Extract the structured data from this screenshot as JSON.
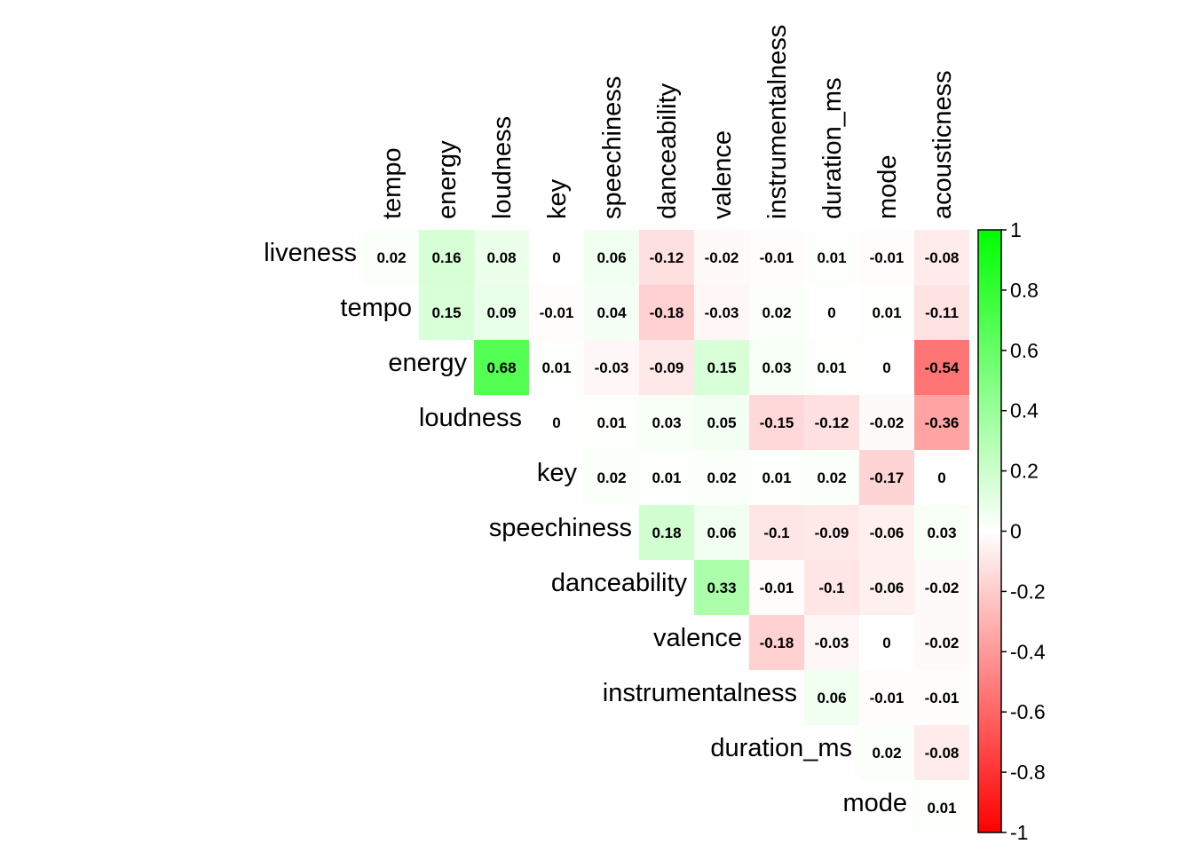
{
  "chart_data": {
    "type": "heatmap",
    "layout": "upper-triangular correlation matrix",
    "rows": [
      "liveness",
      "tempo",
      "energy",
      "loudness",
      "key",
      "speechiness",
      "danceability",
      "valence",
      "instrumentalness",
      "duration_ms",
      "mode"
    ],
    "columns": [
      "tempo",
      "energy",
      "loudness",
      "key",
      "speechiness",
      "danceability",
      "valence",
      "instrumentalness",
      "duration_ms",
      "mode",
      "acousticness"
    ],
    "values": [
      [
        0.02,
        0.16,
        0.08,
        0,
        0.06,
        -0.12,
        -0.02,
        -0.01,
        0.01,
        -0.01,
        -0.08
      ],
      [
        null,
        0.15,
        0.09,
        -0.01,
        0.04,
        -0.18,
        -0.03,
        0.02,
        0,
        0.01,
        -0.11
      ],
      [
        null,
        null,
        0.68,
        0.01,
        -0.03,
        -0.09,
        0.15,
        0.03,
        0.01,
        0,
        -0.54
      ],
      [
        null,
        null,
        null,
        0,
        0.01,
        0.03,
        0.05,
        -0.15,
        -0.12,
        -0.02,
        -0.36
      ],
      [
        null,
        null,
        null,
        null,
        0.02,
        0.01,
        0.02,
        0.01,
        0.02,
        -0.17,
        0
      ],
      [
        null,
        null,
        null,
        null,
        null,
        0.18,
        0.06,
        -0.1,
        -0.09,
        -0.06,
        0.03
      ],
      [
        null,
        null,
        null,
        null,
        null,
        null,
        0.33,
        -0.01,
        -0.1,
        -0.06,
        -0.02
      ],
      [
        null,
        null,
        null,
        null,
        null,
        null,
        null,
        -0.18,
        -0.03,
        0,
        -0.02
      ],
      [
        null,
        null,
        null,
        null,
        null,
        null,
        null,
        null,
        0.06,
        -0.01,
        -0.01
      ],
      [
        null,
        null,
        null,
        null,
        null,
        null,
        null,
        null,
        null,
        0.02,
        -0.08
      ],
      [
        null,
        null,
        null,
        null,
        null,
        null,
        null,
        null,
        null,
        null,
        0.01
      ]
    ],
    "colorbar": {
      "min": -1,
      "max": 1,
      "ticks": [
        "1",
        "0.8",
        "0.6",
        "0.4",
        "0.2",
        "0",
        "-0.2",
        "-0.4",
        "-0.6",
        "-0.8",
        "-1"
      ],
      "low_color": "#ff0000",
      "mid_color": "#ffffff",
      "high_color": "#00ff00"
    }
  }
}
